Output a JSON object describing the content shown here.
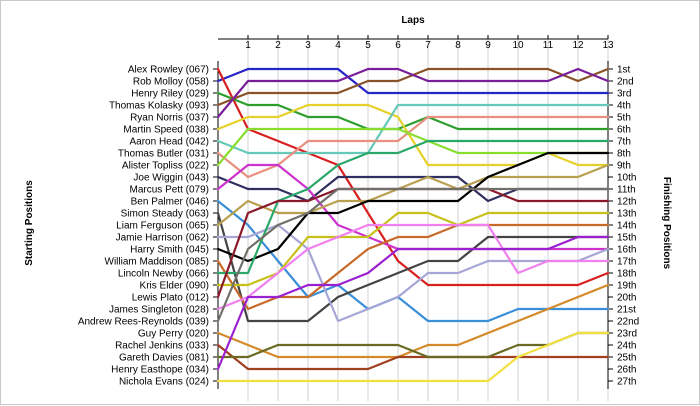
{
  "chart_data": {
    "type": "line",
    "title": "",
    "top_axis_label": "Laps",
    "left_axis_label": "Starting Positions",
    "right_axis_label": "Finishing Positions",
    "laps": [
      0,
      1,
      2,
      3,
      4,
      5,
      6,
      7,
      8,
      9,
      10,
      11,
      12,
      13
    ],
    "lap_tick_labels": [
      "1",
      "2",
      "3",
      "4",
      "5",
      "6",
      "7",
      "8",
      "9",
      "10",
      "11",
      "12",
      "13"
    ],
    "finish_labels": [
      "1st",
      "2nd",
      "3rd",
      "4th",
      "5th",
      "6th",
      "7th",
      "8th",
      "9th",
      "10th",
      "11th",
      "12th",
      "13th",
      "14th",
      "15th",
      "16th",
      "17th",
      "18th",
      "19th",
      "20th",
      "21st",
      "22nd",
      "23rd",
      "24th",
      "25th",
      "26th",
      "27th"
    ],
    "grid": true,
    "series": [
      {
        "name": "Rob Molloy (058)",
        "color": "#2525c8",
        "positions": [
          2,
          1,
          1,
          1,
          1,
          3,
          3,
          3,
          3,
          3,
          3,
          3,
          3,
          3
        ]
      },
      {
        "name": "Alex Rowley (067)",
        "color": "#d92020",
        "positions": [
          1,
          6,
          7,
          8,
          9,
          13,
          17,
          19,
          19,
          19,
          19,
          19,
          19,
          18
        ]
      },
      {
        "name": "Henry Riley (029)",
        "color": "#2d9e2d",
        "positions": [
          3,
          4,
          4,
          5,
          5,
          6,
          6,
          5,
          6,
          6,
          6,
          6,
          6,
          6
        ]
      },
      {
        "name": "Thomas Kolasky (093)",
        "color": "#8a5228",
        "positions": [
          4,
          3,
          3,
          3,
          3,
          2,
          2,
          1,
          1,
          1,
          1,
          1,
          2,
          1
        ]
      },
      {
        "name": "Ryan Norris (037)",
        "color": "#7a1f9a",
        "positions": [
          5,
          2,
          2,
          2,
          2,
          1,
          1,
          2,
          2,
          2,
          2,
          2,
          1,
          2
        ]
      },
      {
        "name": "Martin Speed (038)",
        "color": "#e6d02a",
        "positions": [
          6,
          5,
          5,
          4,
          4,
          4,
          5,
          9,
          9,
          9,
          9,
          8,
          9,
          9
        ]
      },
      {
        "name": "Aaron Head (042)",
        "color": "#66c8b8",
        "positions": [
          7,
          8,
          8,
          8,
          8,
          8,
          4,
          4,
          4,
          4,
          4,
          4,
          4,
          4
        ]
      },
      {
        "name": "Thomas Butler (031)",
        "color": "#e89080",
        "positions": [
          8,
          10,
          9,
          7,
          7,
          7,
          7,
          5,
          5,
          5,
          5,
          5,
          5,
          5
        ]
      },
      {
        "name": "Alister Topliss (022)",
        "color": "#88dd30",
        "positions": [
          9,
          6,
          6,
          6,
          6,
          6,
          6,
          7,
          8,
          8,
          8,
          8,
          8,
          8
        ]
      },
      {
        "name": "Joe Wiggin (043)",
        "color": "#303060",
        "positions": [
          10,
          11,
          11,
          12,
          10,
          10,
          10,
          10,
          10,
          12,
          11,
          11,
          11,
          11
        ]
      },
      {
        "name": "Marcus Pett (079)",
        "color": "#cc33cc",
        "positions": [
          11,
          9,
          9,
          11,
          14,
          15,
          16,
          16,
          16,
          16,
          16,
          16,
          16,
          16
        ]
      },
      {
        "name": "Ben Palmer (046)",
        "color": "#3a8fd8",
        "positions": [
          12,
          14,
          17,
          20,
          19,
          21,
          20,
          22,
          22,
          22,
          21,
          21,
          21,
          21
        ]
      },
      {
        "name": "Simon Steady (063)",
        "color": "#444444",
        "positions": [
          13,
          22,
          22,
          22,
          20,
          19,
          18,
          17,
          17,
          15,
          15,
          15,
          15,
          15
        ]
      },
      {
        "name": "Liam Ferguson (065)",
        "color": "#b8a050",
        "positions": [
          14,
          12,
          13,
          13,
          12,
          12,
          11,
          10,
          11,
          10,
          10,
          10,
          10,
          9
        ]
      },
      {
        "name": "Jamie Harrison (062)",
        "color": "#a6a6d6",
        "positions": [
          15,
          15,
          14,
          16,
          22,
          21,
          20,
          18,
          18,
          17,
          17,
          17,
          17,
          16
        ]
      },
      {
        "name": "Harry Smith (045)",
        "color": "#000000",
        "positions": [
          16,
          17,
          16,
          13,
          13,
          12,
          12,
          12,
          12,
          10,
          9,
          8,
          8,
          8
        ]
      },
      {
        "name": "William Maddison (085)",
        "color": "#c86a2a",
        "positions": [
          17,
          21,
          20,
          20,
          18,
          16,
          15,
          15,
          14,
          14,
          14,
          14,
          14,
          14
        ]
      },
      {
        "name": "Lincoln Newby (066)",
        "color": "#2aa86a",
        "positions": [
          18,
          18,
          12,
          11,
          9,
          8,
          8,
          7,
          7,
          7,
          7,
          7,
          7,
          7
        ]
      },
      {
        "name": "Kris Elder (090)",
        "color": "#c8c01a",
        "positions": [
          19,
          19,
          18,
          15,
          15,
          15,
          13,
          13,
          14,
          13,
          13,
          13,
          13,
          13
        ]
      },
      {
        "name": "Lewis Plato (012)",
        "color": "#8a1a2a",
        "positions": [
          20,
          13,
          12,
          12,
          11,
          11,
          11,
          11,
          11,
          11,
          12,
          12,
          12,
          12
        ]
      },
      {
        "name": "James Singleton (028)",
        "color": "#f080f0",
        "positions": [
          21,
          20,
          18,
          16,
          15,
          14,
          14,
          14,
          14,
          14,
          18,
          17,
          17,
          17
        ]
      },
      {
        "name": "Andrew Rees-Reynolds (039)",
        "color": "#70706a",
        "positions": [
          22,
          16,
          14,
          13,
          11,
          11,
          11,
          11,
          11,
          11,
          11,
          11,
          11,
          11
        ]
      },
      {
        "name": "Guy Perry (020)",
        "color": "#d48a2a",
        "positions": [
          23,
          24,
          25,
          25,
          25,
          25,
          25,
          24,
          24,
          23,
          22,
          21,
          20,
          19
        ]
      },
      {
        "name": "Rachel Jenkins (033)",
        "color": "#a04020",
        "positions": [
          24,
          26,
          26,
          26,
          26,
          26,
          25,
          25,
          25,
          25,
          25,
          25,
          25,
          25
        ]
      },
      {
        "name": "Gareth Davies (081)",
        "color": "#6a6a22",
        "positions": [
          25,
          25,
          24,
          24,
          24,
          24,
          24,
          25,
          25,
          25,
          24,
          24,
          23,
          23
        ]
      },
      {
        "name": "Henry Easthope (034)",
        "color": "#9a20d0",
        "positions": [
          26,
          20,
          20,
          19,
          19,
          18,
          16,
          16,
          16,
          16,
          16,
          16,
          15,
          15
        ]
      },
      {
        "name": "Nichola Evans (024)",
        "color": "#f2e040",
        "positions": [
          27,
          27,
          27,
          27,
          27,
          27,
          27,
          27,
          27,
          27,
          25,
          24,
          23,
          23
        ]
      }
    ]
  }
}
